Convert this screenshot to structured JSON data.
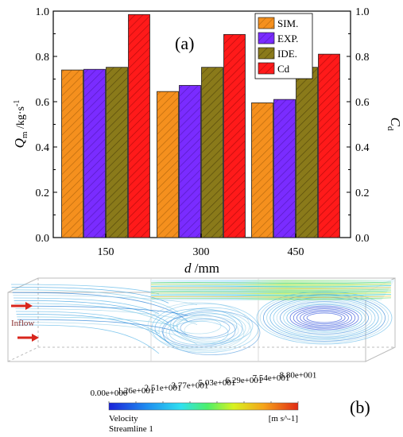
{
  "chart_data": {
    "type": "bar",
    "panel_label": "(a)",
    "categories": [
      "150",
      "300",
      "450"
    ],
    "series": [
      {
        "name": "SIM.",
        "axis": "left",
        "values": [
          0.74,
          0.645,
          0.595
        ],
        "color": "#f5901e"
      },
      {
        "name": "EXP.",
        "axis": "left",
        "values": [
          0.743,
          0.672,
          0.61
        ],
        "color": "#7a2cff"
      },
      {
        "name": "IDE.",
        "axis": "left",
        "values": [
          0.752,
          0.752,
          0.752
        ],
        "color": "#8a7a1a"
      },
      {
        "name": "Cd",
        "axis": "right",
        "values": [
          0.985,
          0.897,
          0.81
        ],
        "color": "#ff1a1a"
      }
    ],
    "xlabel_symbol": "d",
    "xlabel_unit": " /mm",
    "ylabel_left_symbol": "Q",
    "ylabel_left_sub": "m",
    "ylabel_left_unit": " /kg·s",
    "ylabel_left_sup": "-1",
    "ylabel_right_symbol": "C",
    "ylabel_right_sub": "d",
    "ylim": [
      0,
      1.0
    ],
    "ylim_right": [
      0,
      1.0
    ],
    "yticks": [
      "0.0",
      "0.2",
      "0.4",
      "0.6",
      "0.8",
      "1.0"
    ],
    "yticks_right": [
      "0.0",
      "0.2",
      "0.4",
      "0.6",
      "0.8",
      "1.0"
    ],
    "legend_position": "top-right",
    "grid": false
  },
  "flow_panel": {
    "panel_label": "(b)",
    "inflow_label": "Inflow",
    "colorbar_ticks": [
      "0.00e+000",
      "1.26e+001",
      "2.51e+001",
      "3.77e+001",
      "5.03e+001",
      "6.29e+001",
      "7.54e+001",
      "8.80e+001"
    ],
    "colorbar_title": "Velocity",
    "colorbar_subtitle": "Streamline 1",
    "colorbar_unit": "[m s^-1]"
  }
}
